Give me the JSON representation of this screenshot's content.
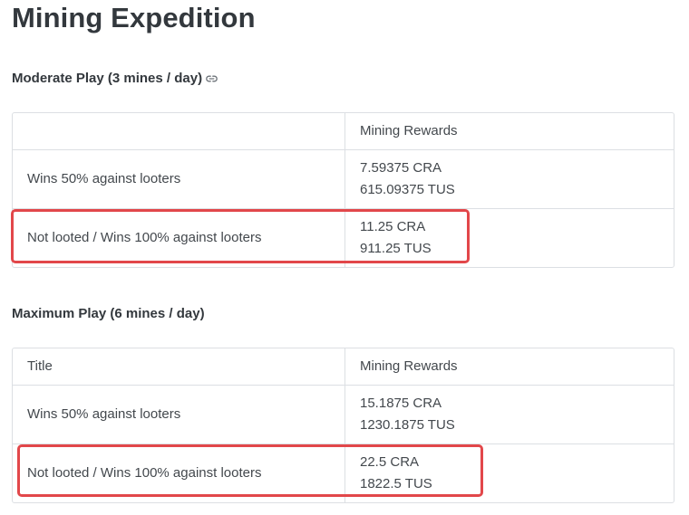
{
  "page": {
    "title": "Mining Expedition"
  },
  "sections": [
    {
      "heading": "Moderate Play (3 mines / day)",
      "has_link_icon": true,
      "table": {
        "headers": [
          "",
          "Mining Rewards"
        ],
        "rows": [
          {
            "title": "Wins 50% against looters",
            "rewards": [
              "7.59375 CRA",
              "615.09375 TUS"
            ],
            "highlighted": false
          },
          {
            "title": "Not looted / Wins 100% against looters",
            "rewards": [
              "11.25 CRA",
              "911.25 TUS"
            ],
            "highlighted": true
          }
        ]
      }
    },
    {
      "heading": "Maximum Play (6 mines / day)",
      "has_link_icon": false,
      "table": {
        "headers": [
          "Title",
          "Mining Rewards"
        ],
        "rows": [
          {
            "title": "Wins 50% against looters",
            "rewards": [
              "15.1875 CRA",
              "1230.1875 TUS"
            ],
            "highlighted": false
          },
          {
            "title": "Not looted / Wins 100% against looters",
            "rewards": [
              "22.5 CRA",
              "1822.5 TUS"
            ],
            "highlighted": true
          }
        ]
      }
    }
  ],
  "colors": {
    "highlight": "#e2474a",
    "border": "#dcdfe3",
    "text": "#43484d",
    "heading": "#33383d"
  },
  "icons": {
    "section_link": "link-icon"
  }
}
